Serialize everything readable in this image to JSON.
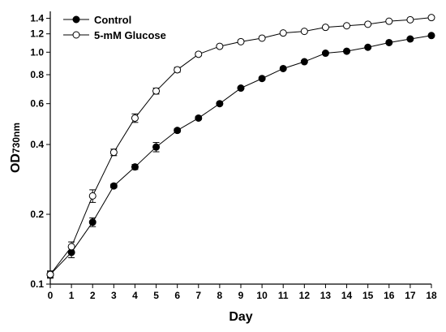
{
  "chart_data": {
    "type": "line",
    "xlabel": "Day",
    "ylabel_main": "OD",
    "ylabel_sub": "730nm",
    "y_scale": "log",
    "xlim": [
      0,
      18
    ],
    "ylim": [
      0.1,
      1.5
    ],
    "x_ticks": [
      "0",
      "1",
      "2",
      "3",
      "4",
      "5",
      "6",
      "7",
      "8",
      "9",
      "10",
      "11",
      "12",
      "13",
      "14",
      "15",
      "16",
      "17",
      "18"
    ],
    "y_ticks": [
      {
        "value": 0.1,
        "label": "0.1"
      },
      {
        "value": 0.2,
        "label": "0.2"
      },
      {
        "value": 0.4,
        "label": "0.4"
      },
      {
        "value": 0.6,
        "label": "0.6"
      },
      {
        "value": 0.8,
        "label": "0.8"
      },
      {
        "value": 1.0,
        "label": "1.0"
      },
      {
        "value": 1.2,
        "label": "1.2"
      },
      {
        "value": 1.4,
        "label": "1.4"
      }
    ],
    "legend_position": "top-left",
    "series": [
      {
        "name": "Control",
        "marker": "filled-circle",
        "x": [
          0,
          1,
          2,
          3,
          4,
          5,
          6,
          7,
          8,
          9,
          10,
          11,
          12,
          13,
          14,
          15,
          16,
          17,
          18
        ],
        "y": [
          0.11,
          0.137,
          0.185,
          0.265,
          0.32,
          0.39,
          0.46,
          0.52,
          0.6,
          0.7,
          0.77,
          0.85,
          0.91,
          0.99,
          1.01,
          1.05,
          1.1,
          1.14,
          1.18
        ],
        "err": [
          0.003,
          0.007,
          0.008,
          0.005,
          0.008,
          0.018,
          0.008,
          0.008,
          0.006,
          0.009,
          0.01,
          0.01,
          0.01,
          0.01,
          0.01,
          0.01,
          0.01,
          0.01,
          0.01
        ]
      },
      {
        "name": "5-mM Glucose",
        "marker": "open-circle",
        "x": [
          0,
          1,
          2,
          3,
          4,
          5,
          6,
          7,
          8,
          9,
          10,
          11,
          12,
          13,
          14,
          15,
          16,
          17,
          18
        ],
        "y": [
          0.11,
          0.145,
          0.24,
          0.37,
          0.52,
          0.68,
          0.84,
          0.98,
          1.06,
          1.11,
          1.15,
          1.21,
          1.23,
          1.28,
          1.3,
          1.32,
          1.36,
          1.38,
          1.41
        ],
        "err": [
          0.004,
          0.007,
          0.015,
          0.012,
          0.022,
          0.02,
          0.02,
          0.015,
          0.01,
          0.01,
          0.01,
          0.01,
          0.01,
          0.01,
          0.01,
          0.01,
          0.01,
          0.01,
          0.015
        ]
      }
    ]
  }
}
